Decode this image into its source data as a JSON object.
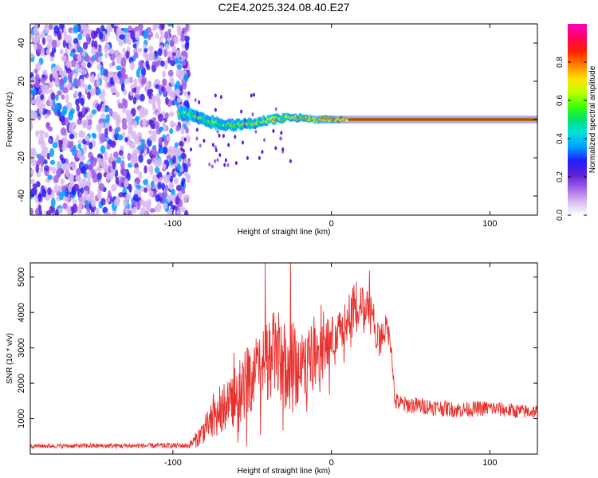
{
  "title": "C2E4.2025.324.08.40.E27",
  "colors": {
    "signal_line": "#e8302c",
    "scatter_dot": "#7a2bd6",
    "axis": "#000000"
  },
  "colorbar": {
    "label": "Normalized spectral amplitude",
    "ticks": [
      "0.0",
      "0.2",
      "0.4",
      "0.6",
      "0.8"
    ],
    "range": [
      0,
      1
    ],
    "colormap": [
      "#ffffff",
      "#d8b8f0",
      "#a060e8",
      "#5a20d8",
      "#2020ff",
      "#00a0ff",
      "#00e0e0",
      "#00e070",
      "#40ff00",
      "#c0ff00",
      "#ffe000",
      "#ff8000",
      "#ff2000",
      "#ff0060",
      "#ff00c0"
    ]
  },
  "chart_data": [
    {
      "type": "heatmap",
      "title": "C2E4.2025.324.08.40.E27",
      "xlabel": "Height of straight line (km)",
      "ylabel": "Frequency (Hz)",
      "xlim": [
        -190,
        130
      ],
      "ylim": [
        -50,
        50
      ],
      "xticks": [
        -100,
        0,
        100
      ],
      "xtick_labels": [
        "-100",
        "0",
        "100"
      ],
      "yticks": [
        -40,
        -20,
        0,
        20,
        40
      ],
      "ytick_labels": [
        "-40",
        "-20",
        "0",
        "20",
        "40"
      ],
      "regions": [
        {
          "name": "broadband noise",
          "x_range": [
            -190,
            -90
          ],
          "y_range": [
            -50,
            50
          ],
          "amplitude": 0.15
        },
        {
          "name": "wobbling trace",
          "x_range": [
            -96,
            10
          ],
          "center_hz": [
            4,
            1,
            -2,
            -3,
            -2,
            0,
            1,
            0,
            0
          ],
          "center_x": [
            -96,
            -85,
            -72,
            -62,
            -50,
            -38,
            -25,
            -10,
            10
          ],
          "amplitude": 0.5
        },
        {
          "name": "steady line at 0 Hz",
          "x_range": [
            10,
            130
          ],
          "y": 0,
          "amplitude": 0.95
        }
      ],
      "colorbar_label": "Normalized spectral amplitude"
    },
    {
      "type": "line",
      "xlabel": "Height of straight line (km)",
      "ylabel": "SNR (10 * v/v)",
      "xlim": [
        -190,
        130
      ],
      "ylim": [
        0,
        5400
      ],
      "xticks": [
        -100,
        0,
        100
      ],
      "xtick_labels": [
        "-100",
        "0",
        "100"
      ],
      "yticks": [
        1000,
        2000,
        3000,
        4000,
        5000
      ],
      "ytick_labels": [
        "1000",
        "2000",
        "3000",
        "4000",
        "5000"
      ],
      "envelope": {
        "x": [
          -190,
          -90,
          -85,
          -80,
          -70,
          -60,
          -50,
          -40,
          -35,
          -30,
          -20,
          -10,
          0,
          10,
          20,
          25,
          30,
          35,
          38,
          40,
          45,
          60,
          80,
          100,
          120,
          130
        ],
        "y": [
          230,
          240,
          420,
          700,
          1200,
          1700,
          2200,
          2700,
          2900,
          2500,
          2400,
          2800,
          3200,
          3700,
          4200,
          4000,
          3200,
          3600,
          3000,
          1500,
          1400,
          1350,
          1250,
          1300,
          1200,
          1200
        ]
      },
      "noise_amplitude": {
        "x": [
          -190,
          -90,
          -80,
          -60,
          -30,
          0,
          30,
          40,
          130
        ],
        "y": [
          60,
          80,
          400,
          900,
          1300,
          700,
          500,
          250,
          200
        ]
      }
    }
  ]
}
